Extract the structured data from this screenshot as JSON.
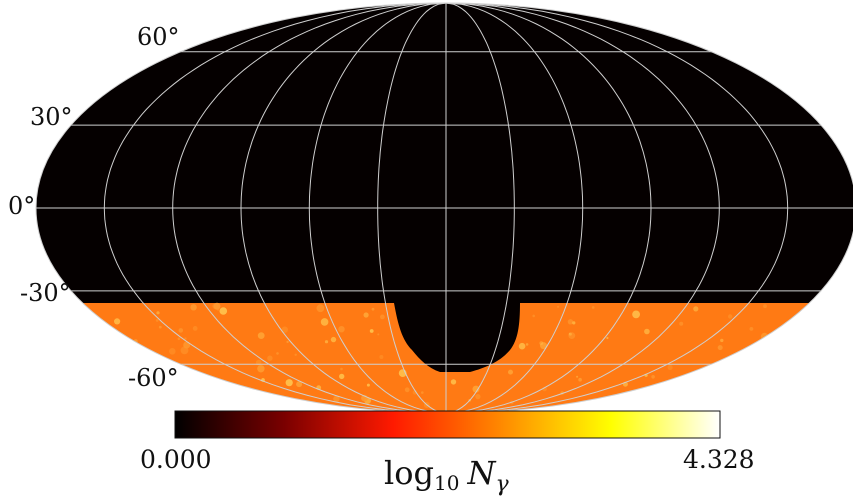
{
  "map": {
    "projection": "mollweide",
    "background_color": "#050000",
    "grid_color": "#cfcfcf",
    "latitude_labels": [
      "60°",
      "30°",
      "0°",
      "-30°",
      "-60°"
    ],
    "latitude_values": [
      60,
      30,
      0,
      -30,
      -60
    ],
    "meridian_spacing_deg": 30,
    "coverage": {
      "dec_max_deg": -33,
      "fill_color": "#ff7a14",
      "hotspot_color": "#ffc24d"
    }
  },
  "colorbar": {
    "colormap": "hot",
    "min_label": "0.000",
    "max_label": "4.328",
    "title_main": "log",
    "title_sub": "10",
    "title_var": "N",
    "title_var_sub": "γ",
    "stops": [
      "#000000",
      "#7a0000",
      "#ff1a00",
      "#ff8a00",
      "#ffff00",
      "#ffffff"
    ]
  }
}
